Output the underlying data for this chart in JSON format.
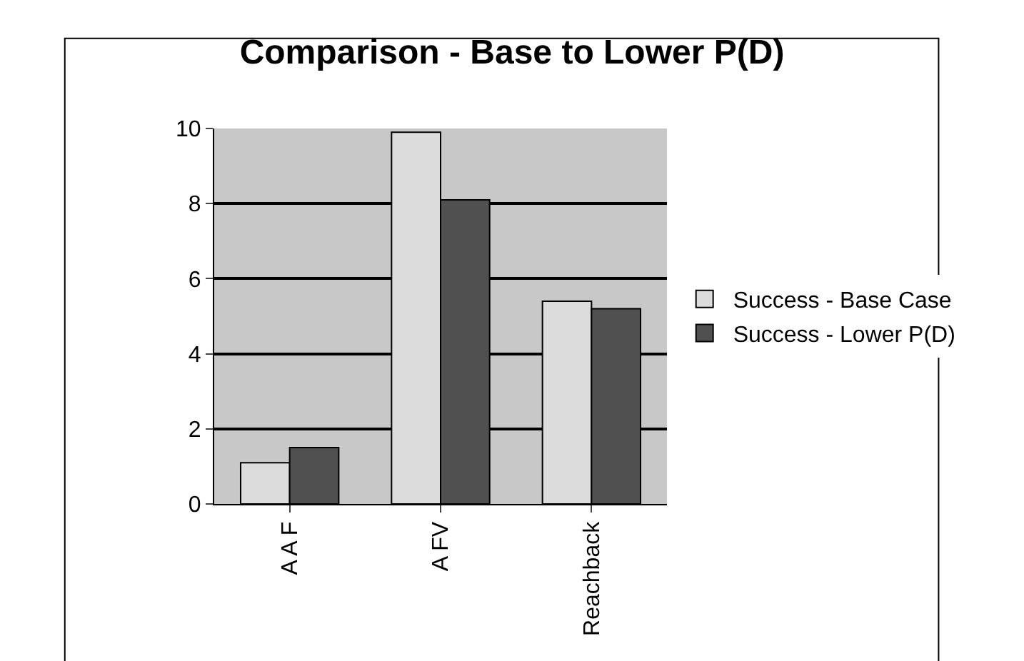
{
  "chart_data": {
    "type": "bar",
    "title": "Comparison - Base to Lower P(D)",
    "categories": [
      "A A F",
      "A FV",
      "Reachback"
    ],
    "series": [
      {
        "name": "Success - Base Case",
        "color": "#dcdcdc",
        "values": [
          1.1,
          9.9,
          5.4
        ]
      },
      {
        "name": "Success - Lower P(D)",
        "color": "#505050",
        "values": [
          1.5,
          8.1,
          5.2
        ]
      }
    ],
    "ylim": [
      0,
      10
    ],
    "yticks": [
      0,
      2,
      4,
      6,
      8,
      10
    ],
    "grid": "y",
    "legend": "right"
  }
}
